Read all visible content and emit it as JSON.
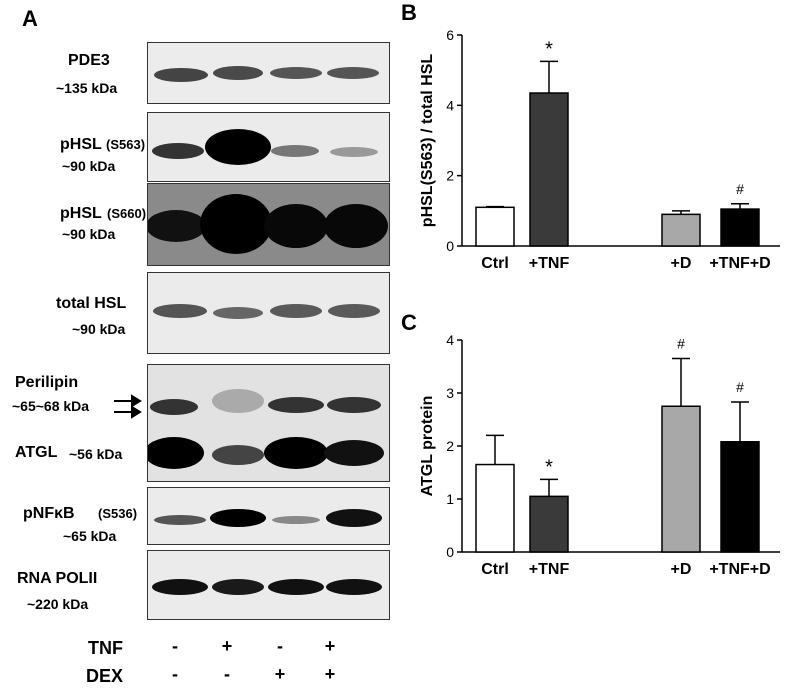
{
  "panel_a": {
    "letter": "A",
    "blots": [
      {
        "name": "PDE3",
        "size": "~135 kDa"
      },
      {
        "name": "pHSL",
        "site": "(S563)",
        "size": "~90 kDa"
      },
      {
        "name": "pHSL",
        "site": "(S660)",
        "size": "~90 kDa"
      },
      {
        "name": "total HSL",
        "size": "~90 kDa"
      },
      {
        "name": "Perilipin",
        "size": "~65~68 kDa"
      },
      {
        "name": "ATGL",
        "size": "~56 kDa"
      },
      {
        "name": "pNFκB",
        "site": "(S536)",
        "size": "~65 kDa"
      },
      {
        "name": "RNA POLII",
        "size": "~220 kDa"
      }
    ],
    "treatments": [
      {
        "label": "TNF",
        "signs": [
          "-",
          "+",
          "-",
          "+"
        ]
      },
      {
        "label": "DEX",
        "signs": [
          "-",
          "-",
          "+",
          "+"
        ]
      }
    ]
  },
  "chart_data": [
    {
      "panel": "B",
      "type": "bar",
      "ylabel": "pHSL(S563) / total HSL",
      "ylim": [
        0,
        6
      ],
      "yticks": [
        0,
        2,
        4,
        6
      ],
      "categories": [
        "Ctrl",
        "+TNF",
        "+D",
        "+TNF+D"
      ],
      "values": [
        1.1,
        4.35,
        0.9,
        1.05
      ],
      "errors": [
        0.02,
        0.9,
        0.1,
        0.15
      ],
      "annotations": [
        "",
        "*",
        "",
        "#"
      ],
      "colors": [
        "#ffffff",
        "#3a3a3a",
        "#a8a8a8",
        "#000000"
      ]
    },
    {
      "panel": "C",
      "type": "bar",
      "ylabel": "ATGL protein",
      "ylim": [
        0,
        4
      ],
      "yticks": [
        0,
        1,
        2,
        3,
        4
      ],
      "categories": [
        "Ctrl",
        "+TNF",
        "+D",
        "+TNF+D"
      ],
      "values": [
        1.65,
        1.05,
        2.75,
        2.08
      ],
      "errors": [
        0.55,
        0.32,
        0.9,
        0.75
      ],
      "annotations": [
        "",
        "*",
        "#",
        "#"
      ],
      "colors": [
        "#ffffff",
        "#3a3a3a",
        "#a8a8a8",
        "#000000"
      ]
    }
  ]
}
